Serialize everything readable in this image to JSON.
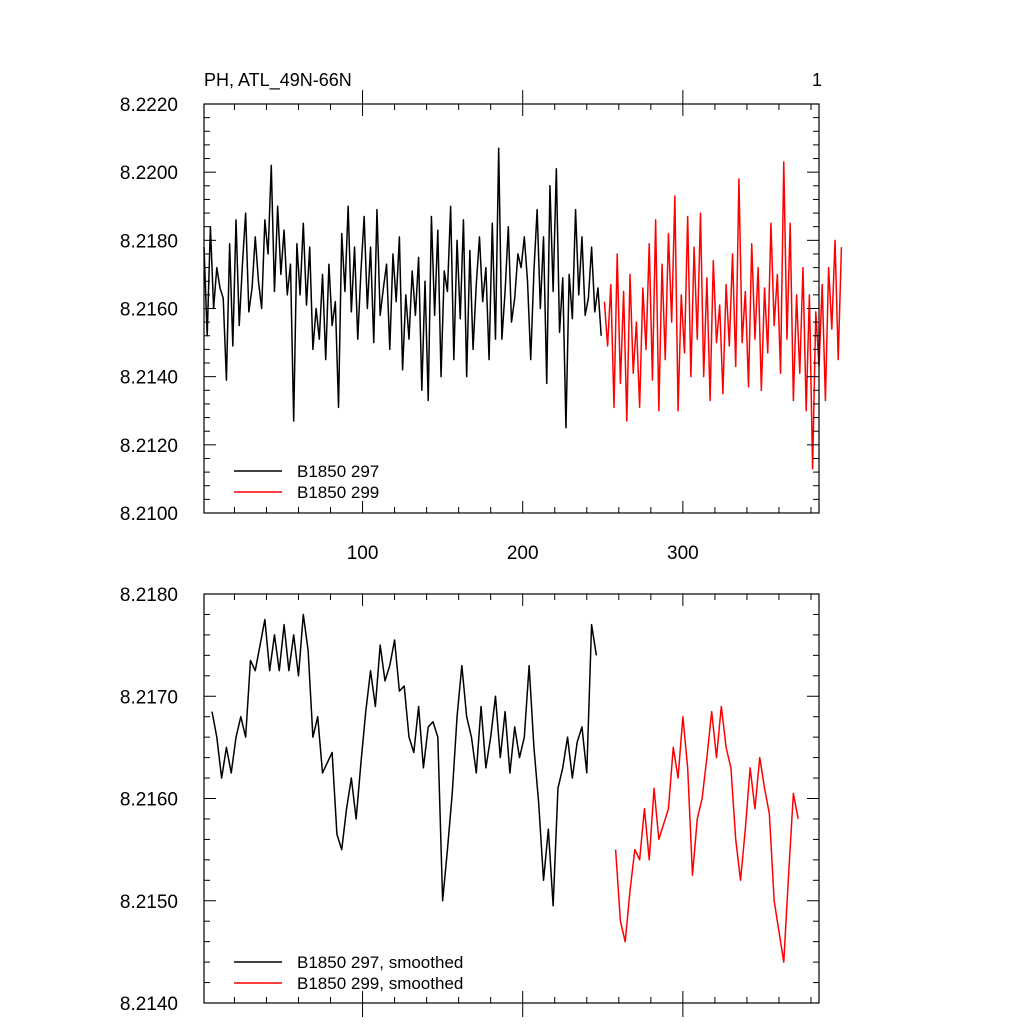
{
  "figure": {
    "panel_label": "1"
  },
  "chart_data": [
    {
      "type": "line",
      "title": "PH, ATL_49N-66N",
      "xlabel": "",
      "ylabel": "",
      "xlim": [
        1,
        385
      ],
      "ylim": [
        8.21,
        8.222
      ],
      "yticks": [
        8.21,
        8.212,
        8.214,
        8.216,
        8.218,
        8.22,
        8.222
      ],
      "ytick_labels": [
        "8.2100",
        "8.2120",
        "8.2140",
        "8.2160",
        "8.2180",
        "8.2200",
        "8.2220"
      ],
      "xticks": [
        100,
        200,
        300
      ],
      "xtick_labels": [
        "100",
        "200",
        "300"
      ],
      "legend_position": "bottom-left",
      "series": [
        {
          "name": "B1850 297",
          "color": "#000000",
          "x_start": 1,
          "x_step": 2,
          "values": [
            8.2178,
            8.2152,
            8.2184,
            8.216,
            8.2172,
            8.2166,
            8.2163,
            8.2139,
            8.2179,
            8.2149,
            8.2186,
            8.2155,
            8.2173,
            8.2188,
            8.2159,
            8.2166,
            8.2181,
            8.2168,
            8.216,
            8.2186,
            8.2176,
            8.2202,
            8.2165,
            8.219,
            8.217,
            8.2183,
            8.2164,
            8.2173,
            8.2127,
            8.2179,
            8.2164,
            8.2185,
            8.2161,
            8.2178,
            8.2148,
            8.216,
            8.2151,
            8.217,
            8.2145,
            8.2173,
            8.2155,
            8.2162,
            8.2131,
            8.2182,
            8.2165,
            8.219,
            8.2159,
            8.2178,
            8.2151,
            8.2171,
            8.2187,
            8.216,
            8.2178,
            8.215,
            8.2189,
            8.2158,
            8.2166,
            8.2173,
            8.2148,
            8.2176,
            8.2162,
            8.2181,
            8.2142,
            8.2164,
            8.2151,
            8.2171,
            8.2158,
            8.2175,
            8.2136,
            8.2168,
            8.2133,
            8.2187,
            8.2158,
            8.2183,
            8.214,
            8.2171,
            8.2165,
            8.219,
            8.2145,
            8.218,
            8.2157,
            8.2186,
            8.214,
            8.2177,
            8.2148,
            8.2167,
            8.2181,
            8.2162,
            8.2172,
            8.2145,
            8.2185,
            8.2151,
            8.2207,
            8.2151,
            8.2165,
            8.2184,
            8.2156,
            8.2163,
            8.2176,
            8.2172,
            8.2181,
            8.2168,
            8.2145,
            8.2171,
            8.2189,
            8.216,
            8.2181,
            8.2138,
            8.2196,
            8.2165,
            8.2201,
            8.2153,
            8.2169,
            8.2125,
            8.217,
            8.2157,
            8.2189,
            8.2164,
            8.2181,
            8.2158,
            8.2163,
            8.2178,
            8.2159,
            8.2166,
            8.2152
          ]
        },
        {
          "name": "B1850 299",
          "color": "#ff0000",
          "x_start": 251,
          "x_step": 2,
          "values": [
            8.2162,
            8.2149,
            8.2167,
            8.2131,
            8.2176,
            8.2138,
            8.2165,
            8.2127,
            8.217,
            8.2141,
            8.2156,
            8.2131,
            8.2166,
            8.2148,
            8.2179,
            8.2139,
            8.2186,
            8.213,
            8.2173,
            8.2145,
            8.2182,
            8.2156,
            8.2193,
            8.213,
            8.2164,
            8.2147,
            8.2187,
            8.214,
            8.2178,
            8.2151,
            8.2188,
            8.214,
            8.2169,
            8.2133,
            8.2174,
            8.215,
            8.2161,
            8.2135,
            8.2167,
            8.2149,
            8.2176,
            8.2143,
            8.2198,
            8.215,
            8.2165,
            8.2137,
            8.2179,
            8.2151,
            8.2172,
            8.2136,
            8.2166,
            8.2147,
            8.2185,
            8.2155,
            8.217,
            8.2141,
            8.2203,
            8.2151,
            8.2185,
            8.2133,
            8.2164,
            8.2141,
            8.2172,
            8.213,
            8.2164,
            8.2113,
            8.2159,
            8.2143,
            8.2167,
            8.2133,
            8.2172,
            8.2154,
            8.218,
            8.2145,
            8.2178
          ]
        }
      ]
    },
    {
      "type": "line",
      "title": "",
      "xlabel": "",
      "ylabel": "",
      "xlim": [
        1,
        385
      ],
      "ylim": [
        8.214,
        8.218
      ],
      "yticks": [
        8.214,
        8.215,
        8.216,
        8.217,
        8.218
      ],
      "ytick_labels": [
        "8.2140",
        "8.2150",
        "8.2160",
        "8.2170",
        "8.2180"
      ],
      "xticks": [
        100,
        200,
        300
      ],
      "xtick_labels": [],
      "legend_position": "bottom-left",
      "series": [
        {
          "name": "B1850 297, smoothed",
          "color": "#000000",
          "x_start": 6,
          "x_step": 3,
          "values": [
            8.21685,
            8.2166,
            8.2162,
            8.2165,
            8.21625,
            8.2166,
            8.2168,
            8.2166,
            8.21735,
            8.21725,
            8.2175,
            8.21775,
            8.21725,
            8.2176,
            8.21725,
            8.2177,
            8.21725,
            8.2176,
            8.2172,
            8.2178,
            8.21745,
            8.2166,
            8.2168,
            8.21625,
            8.21635,
            8.21645,
            8.21565,
            8.2155,
            8.2159,
            8.2162,
            8.2158,
            8.21635,
            8.21685,
            8.21725,
            8.2169,
            8.2175,
            8.21715,
            8.2173,
            8.21755,
            8.21705,
            8.2171,
            8.2166,
            8.21645,
            8.2169,
            8.2163,
            8.2167,
            8.21675,
            8.2166,
            8.215,
            8.2155,
            8.21605,
            8.2168,
            8.2173,
            8.2168,
            8.2166,
            8.21625,
            8.2169,
            8.2163,
            8.2166,
            8.217,
            8.2164,
            8.21685,
            8.21625,
            8.2167,
            8.2164,
            8.2166,
            8.2173,
            8.2165,
            8.21595,
            8.2152,
            8.2157,
            8.21495,
            8.2161,
            8.2163,
            8.2166,
            8.2162,
            8.21655,
            8.2167,
            8.21625,
            8.2177,
            8.2174
          ]
        },
        {
          "name": "B1850 299, smoothed",
          "color": "#ff0000",
          "x_start": 258,
          "x_step": 3,
          "values": [
            8.2155,
            8.2148,
            8.2146,
            8.2151,
            8.2155,
            8.2154,
            8.2159,
            8.2154,
            8.2161,
            8.2156,
            8.21575,
            8.2159,
            8.2165,
            8.2162,
            8.2168,
            8.2163,
            8.21525,
            8.2158,
            8.216,
            8.2164,
            8.21685,
            8.2164,
            8.2169,
            8.2165,
            8.2163,
            8.2156,
            8.2152,
            8.2157,
            8.2163,
            8.2159,
            8.2164,
            8.2161,
            8.21585,
            8.215,
            8.2147,
            8.2144,
            8.21525,
            8.21605,
            8.2158
          ]
        }
      ]
    }
  ]
}
